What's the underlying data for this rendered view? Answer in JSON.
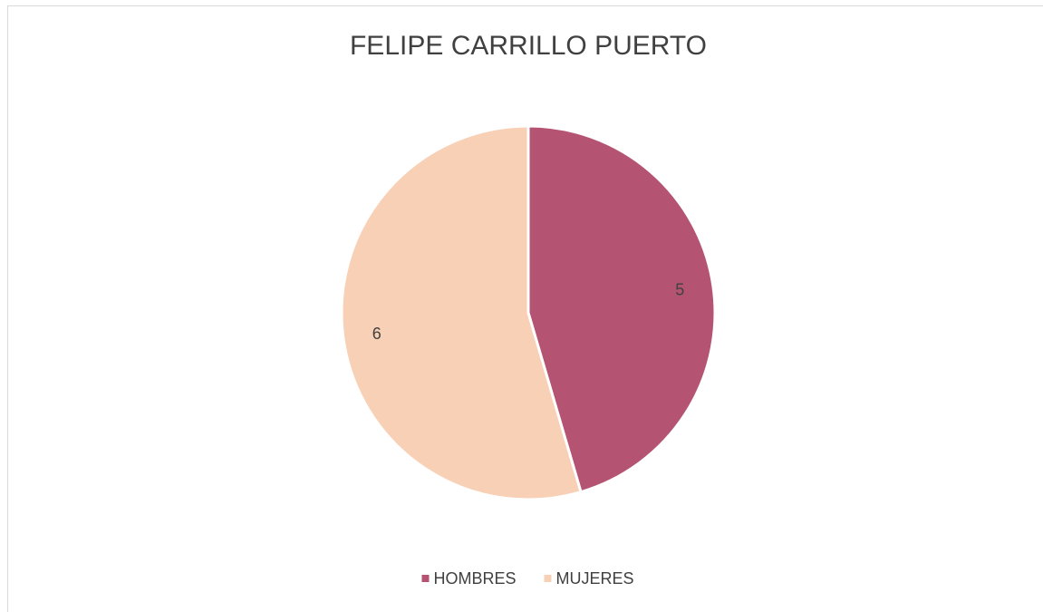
{
  "chart_data": {
    "type": "pie",
    "title": "FELIPE CARRILLO PUERTO",
    "categories": [
      "HOMBRES",
      "MUJERES"
    ],
    "values": [
      5,
      6
    ],
    "colors": [
      "#b55373",
      "#f8d0b5"
    ],
    "legend": "bottom"
  }
}
